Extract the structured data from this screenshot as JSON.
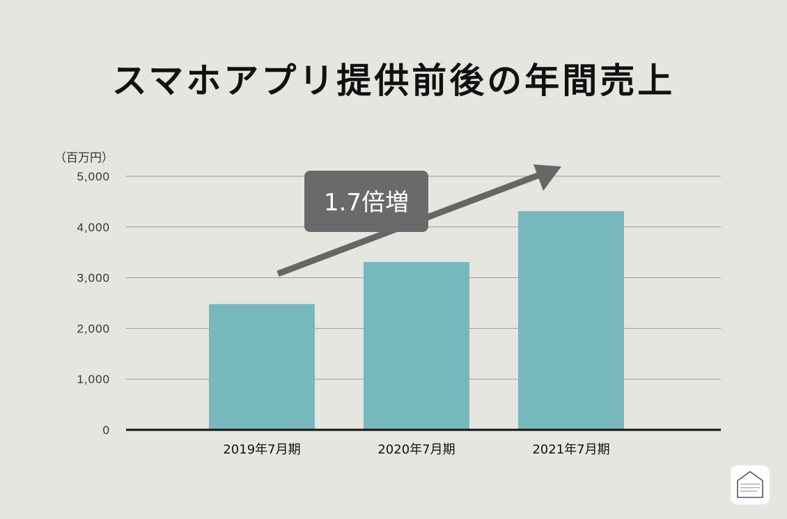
{
  "title": "スマホアプリ提供前後の年間売上",
  "chart_data": {
    "type": "bar",
    "unit_label": "（百万円）",
    "categories": [
      "2019年7月期",
      "2020年7月期",
      "2021年7月期"
    ],
    "values": [
      2480,
      3310,
      4310
    ],
    "ylim": [
      0,
      5000
    ],
    "yticks": [
      0,
      1000,
      2000,
      3000,
      4000,
      5000
    ],
    "ytick_labels": [
      "0",
      "1,000",
      "2,000",
      "3,000",
      "4,000",
      "5,000"
    ],
    "grid": true,
    "bar_color": "#77b8bd",
    "annotation": {
      "text": "1.7倍増"
    }
  },
  "colors": {
    "background": "#e6e5df",
    "grid": "#9a9a9a",
    "axis": "#111111",
    "callout": "#6a6a6a",
    "arrow": "#666666"
  },
  "logo": {
    "icon": "house-logo-icon"
  }
}
